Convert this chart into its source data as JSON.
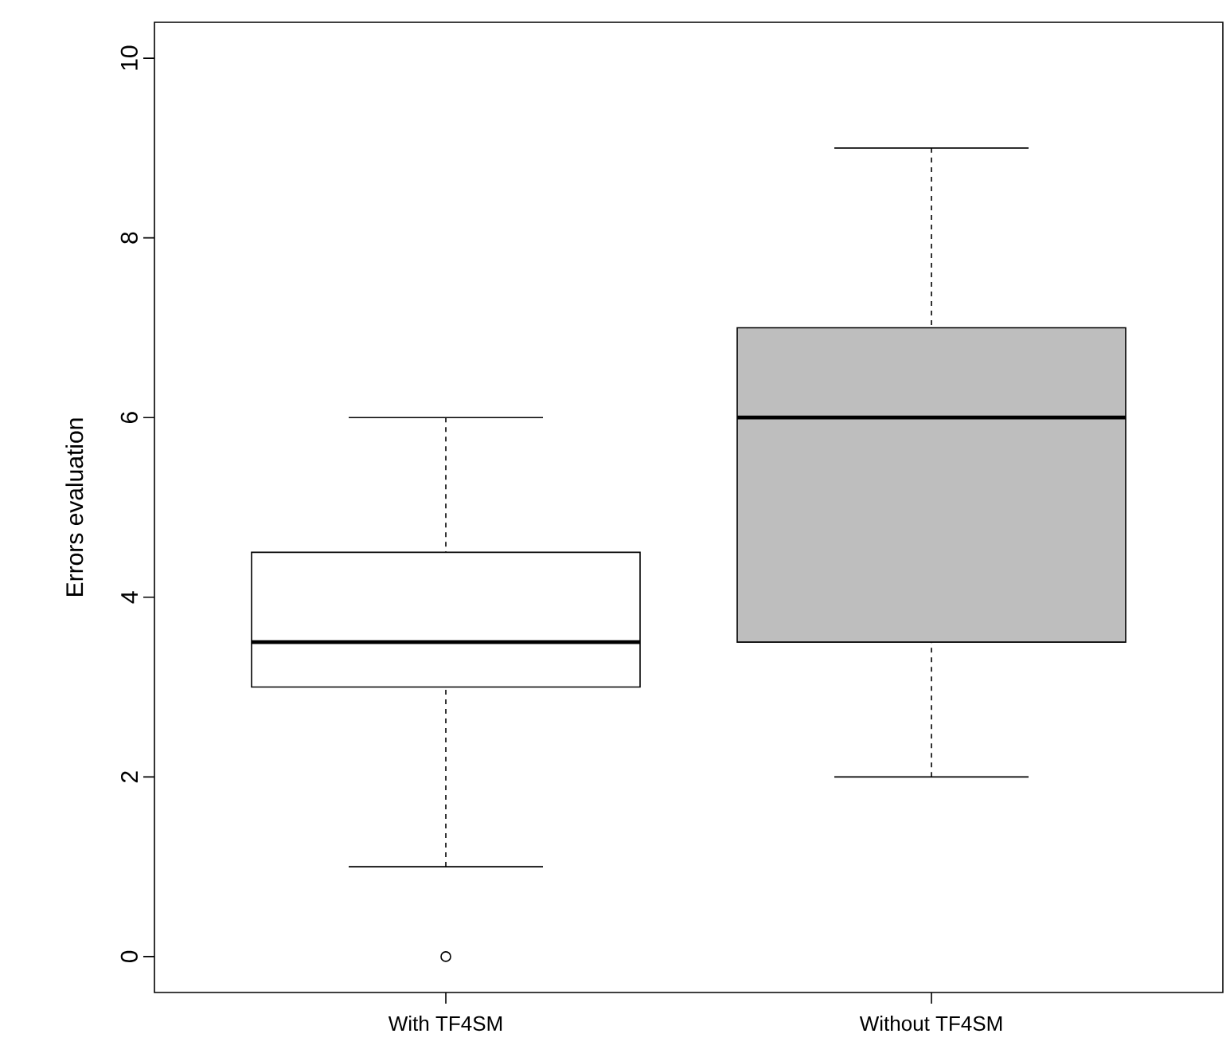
{
  "chart_data": {
    "type": "box",
    "ylabel": "Errors evaluation",
    "categories": [
      "With TF4SM",
      "Without TF4SM"
    ],
    "boxes": [
      {
        "low": 1,
        "q1": 3,
        "median": 3.5,
        "q3": 4.5,
        "high": 6,
        "outliers": [
          0
        ]
      },
      {
        "low": 2,
        "q1": 3.5,
        "median": 6,
        "q3": 7,
        "high": 9
      }
    ],
    "colors": [
      "#ffffff",
      "#bebebe"
    ],
    "ylim": [
      -0.4,
      10.4
    ],
    "yticks": [
      0,
      2,
      4,
      6,
      8,
      10
    ],
    "grid": false
  }
}
